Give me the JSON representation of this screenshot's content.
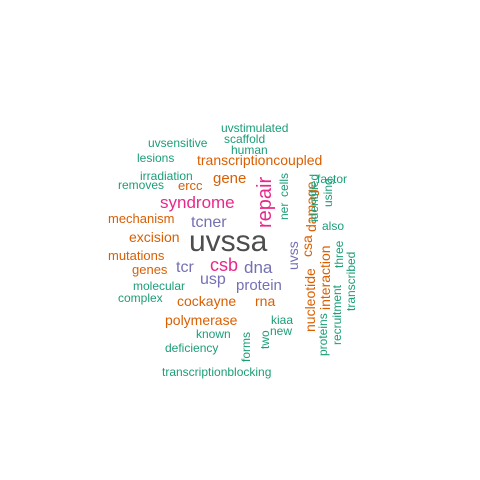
{
  "colors": {
    "dark": "#4d4d4d",
    "magenta": "#e7298a",
    "orange": "#d95f02",
    "purple": "#7570b3",
    "green": "#1b9e77"
  },
  "words": [
    {
      "text": "uvssa",
      "color": "dark",
      "weight": 10
    },
    {
      "text": "repair",
      "color": "magenta",
      "weight": 6
    },
    {
      "text": "csb",
      "color": "magenta",
      "weight": 6
    },
    {
      "text": "syndrome",
      "color": "magenta",
      "weight": 6
    },
    {
      "text": "dna",
      "color": "purple",
      "weight": 5
    },
    {
      "text": "tcner",
      "color": "purple",
      "weight": 5
    },
    {
      "text": "tcr",
      "color": "purple",
      "weight": 5
    },
    {
      "text": "usp",
      "color": "purple",
      "weight": 5
    },
    {
      "text": "protein",
      "color": "purple",
      "weight": 4
    },
    {
      "text": "uvss",
      "color": "purple",
      "weight": 4
    },
    {
      "text": "gene",
      "color": "orange",
      "weight": 4
    },
    {
      "text": "damage",
      "color": "orange",
      "weight": 4
    },
    {
      "text": "csa",
      "color": "orange",
      "weight": 4
    },
    {
      "text": "transcriptioncoupled",
      "color": "orange",
      "weight": 3
    },
    {
      "text": "excision",
      "color": "orange",
      "weight": 3
    },
    {
      "text": "cockayne",
      "color": "orange",
      "weight": 3
    },
    {
      "text": "polymerase",
      "color": "orange",
      "weight": 3
    },
    {
      "text": "nucleotide",
      "color": "orange",
      "weight": 3
    },
    {
      "text": "interaction",
      "color": "orange",
      "weight": 3
    },
    {
      "text": "rna",
      "color": "orange",
      "weight": 3
    },
    {
      "text": "mechanism",
      "color": "orange",
      "weight": 2
    },
    {
      "text": "mutations",
      "color": "orange",
      "weight": 2
    },
    {
      "text": "genes",
      "color": "orange",
      "weight": 2
    },
    {
      "text": "ercc",
      "color": "orange",
      "weight": 2
    },
    {
      "text": "uvstimulated",
      "color": "green",
      "weight": 1
    },
    {
      "text": "scaffold",
      "color": "green",
      "weight": 1
    },
    {
      "text": "uvsensitive",
      "color": "green",
      "weight": 1
    },
    {
      "text": "human",
      "color": "green",
      "weight": 1
    },
    {
      "text": "lesions",
      "color": "green",
      "weight": 1
    },
    {
      "text": "irradiation",
      "color": "green",
      "weight": 1
    },
    {
      "text": "removes",
      "color": "green",
      "weight": 1
    },
    {
      "text": "factor",
      "color": "green",
      "weight": 1
    },
    {
      "text": "cells",
      "color": "green",
      "weight": 1
    },
    {
      "text": "identified",
      "color": "green",
      "weight": 1
    },
    {
      "text": "using",
      "color": "green",
      "weight": 1
    },
    {
      "text": "ner",
      "color": "green",
      "weight": 1
    },
    {
      "text": "also",
      "color": "green",
      "weight": 1
    },
    {
      "text": "molecular",
      "color": "green",
      "weight": 1
    },
    {
      "text": "complex",
      "color": "green",
      "weight": 1
    },
    {
      "text": "three",
      "color": "green",
      "weight": 1
    },
    {
      "text": "recruitment",
      "color": "green",
      "weight": 1
    },
    {
      "text": "transcribed",
      "color": "green",
      "weight": 1
    },
    {
      "text": "kiaa",
      "color": "green",
      "weight": 1
    },
    {
      "text": "new",
      "color": "green",
      "weight": 1
    },
    {
      "text": "proteins",
      "color": "green",
      "weight": 1
    },
    {
      "text": "two",
      "color": "green",
      "weight": 1
    },
    {
      "text": "known",
      "color": "green",
      "weight": 1
    },
    {
      "text": "forms",
      "color": "green",
      "weight": 1
    },
    {
      "text": "deficiency",
      "color": "green",
      "weight": 1
    },
    {
      "text": "transcriptionblocking",
      "color": "green",
      "weight": 1
    }
  ]
}
